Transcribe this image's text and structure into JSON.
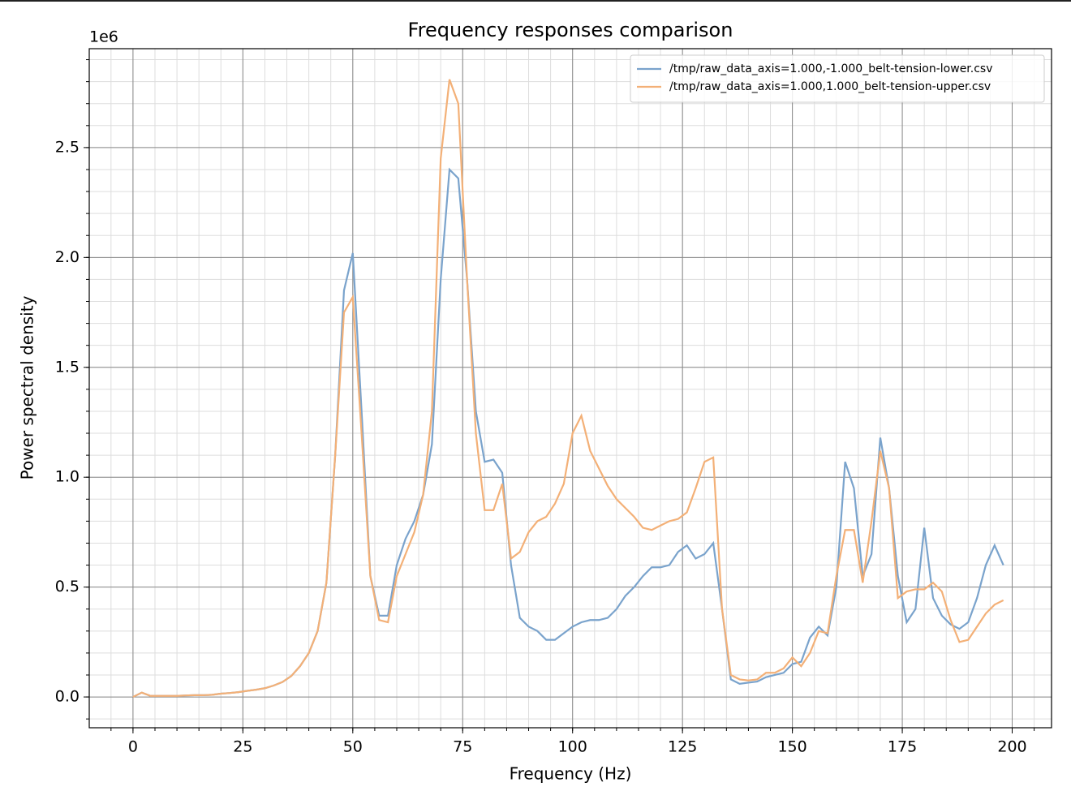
{
  "chart_data": {
    "type": "line",
    "title": "Frequency responses comparison",
    "xlabel": "Frequency (Hz)",
    "ylabel": "Power spectral density",
    "y_offset_label": "1e6",
    "x": [
      0,
      2,
      4,
      6,
      8,
      10,
      12,
      14,
      16,
      18,
      20,
      22,
      24,
      26,
      28,
      30,
      32,
      34,
      36,
      38,
      40,
      42,
      44,
      46,
      48,
      50,
      52,
      54,
      56,
      58,
      60,
      62,
      64,
      66,
      68,
      70,
      72,
      74,
      76,
      78,
      80,
      82,
      84,
      86,
      88,
      90,
      92,
      94,
      96,
      98,
      100,
      102,
      104,
      106,
      108,
      110,
      112,
      114,
      116,
      118,
      120,
      122,
      124,
      126,
      128,
      130,
      132,
      134,
      136,
      138,
      140,
      142,
      144,
      146,
      148,
      150,
      152,
      154,
      156,
      158,
      160,
      162,
      164,
      166,
      168,
      170,
      172,
      174,
      176,
      178,
      180,
      182,
      184,
      186,
      188,
      190,
      192,
      194,
      196,
      198
    ],
    "series": [
      {
        "name": "/tmp/raw_data_axis=1.000,-1.000_belt-tension-lower.csv",
        "color": "#7aa3cc",
        "values": [
          0,
          0.02,
          0.005,
          0.005,
          0.005,
          0.005,
          0.007,
          0.008,
          0.008,
          0.01,
          0.015,
          0.018,
          0.022,
          0.028,
          0.033,
          0.04,
          0.052,
          0.068,
          0.095,
          0.14,
          0.2,
          0.3,
          0.52,
          1.1,
          1.85,
          2.02,
          1.3,
          0.55,
          0.37,
          0.37,
          0.6,
          0.72,
          0.8,
          0.92,
          1.15,
          1.9,
          2.4,
          2.36,
          1.9,
          1.3,
          1.07,
          1.08,
          1.02,
          0.6,
          0.36,
          0.32,
          0.3,
          0.26,
          0.26,
          0.29,
          0.32,
          0.34,
          0.35,
          0.35,
          0.36,
          0.4,
          0.46,
          0.5,
          0.55,
          0.59,
          0.59,
          0.6,
          0.66,
          0.69,
          0.63,
          0.65,
          0.7,
          0.4,
          0.08,
          0.06,
          0.065,
          0.07,
          0.09,
          0.1,
          0.11,
          0.15,
          0.16,
          0.27,
          0.32,
          0.28,
          0.5,
          1.07,
          0.95,
          0.55,
          0.65,
          1.18,
          0.95,
          0.55,
          0.34,
          0.4,
          0.77,
          0.45,
          0.37,
          0.33,
          0.31,
          0.34,
          0.45,
          0.6,
          0.69,
          0.6
        ]
      },
      {
        "name": "/tmp/raw_data_axis=1.000,1.000_belt-tension-upper.csv",
        "color": "#f3b077",
        "values": [
          0,
          0.02,
          0.005,
          0.005,
          0.005,
          0.005,
          0.007,
          0.008,
          0.008,
          0.01,
          0.015,
          0.018,
          0.022,
          0.028,
          0.033,
          0.04,
          0.052,
          0.068,
          0.095,
          0.14,
          0.2,
          0.3,
          0.52,
          1.1,
          1.75,
          1.82,
          1.2,
          0.55,
          0.35,
          0.34,
          0.55,
          0.65,
          0.75,
          0.92,
          1.3,
          2.45,
          2.81,
          2.7,
          1.9,
          1.2,
          0.85,
          0.85,
          0.97,
          0.63,
          0.66,
          0.75,
          0.8,
          0.82,
          0.88,
          0.97,
          1.2,
          1.28,
          1.12,
          1.04,
          0.96,
          0.9,
          0.86,
          0.82,
          0.77,
          0.76,
          0.78,
          0.8,
          0.81,
          0.84,
          0.95,
          1.07,
          1.09,
          0.4,
          0.1,
          0.08,
          0.075,
          0.08,
          0.11,
          0.11,
          0.13,
          0.18,
          0.14,
          0.2,
          0.3,
          0.29,
          0.55,
          0.76,
          0.76,
          0.52,
          0.8,
          1.12,
          0.95,
          0.45,
          0.48,
          0.49,
          0.49,
          0.52,
          0.48,
          0.35,
          0.25,
          0.26,
          0.32,
          0.38,
          0.42,
          0.44
        ]
      }
    ],
    "xlim": [
      -9.95,
      208.95
    ],
    "ylim": [
      -0.14,
      2.95
    ],
    "xticks": [
      0,
      25,
      50,
      75,
      100,
      125,
      150,
      175,
      200
    ],
    "yticks": [
      {
        "value": 0,
        "label": "0.0"
      },
      0.5,
      {
        "value": 1,
        "label": "1.0"
      },
      1.5,
      {
        "value": 2,
        "label": "2.0"
      },
      2.5
    ],
    "minor_xstep": 5,
    "minor_ystep": 0.1,
    "grid": true,
    "legend": "upper right"
  }
}
